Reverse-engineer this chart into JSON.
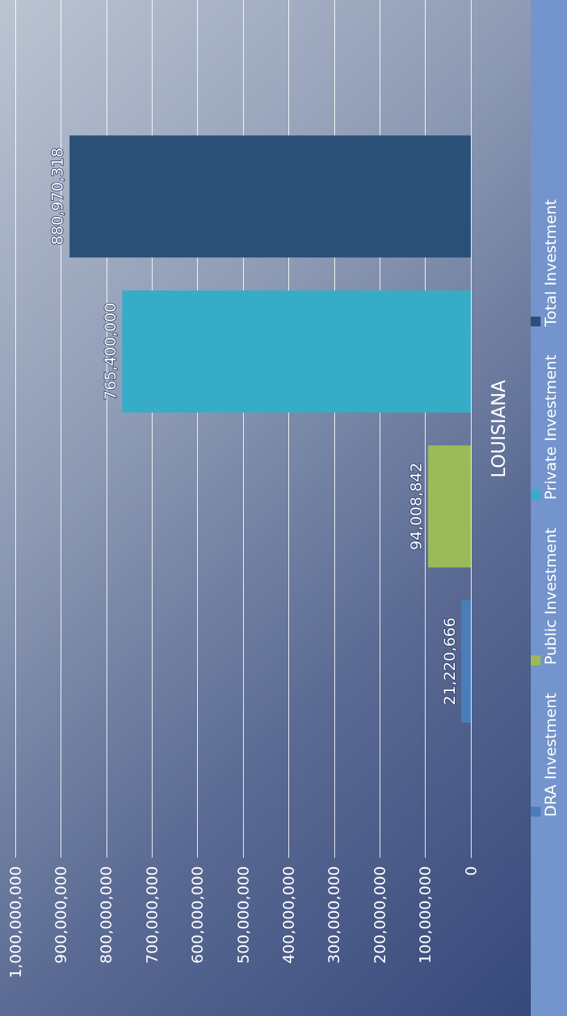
{
  "chart_data": {
    "type": "bar",
    "orientation": "horizontal",
    "categories": [
      "LOUISIANA"
    ],
    "series": [
      {
        "name": "DRA Investment",
        "color": "#4a7ebb",
        "values": [
          21220666
        ],
        "value_labels": [
          "21,220,666"
        ]
      },
      {
        "name": "Public Investment",
        "color": "#9bbb59",
        "values": [
          94008842
        ],
        "value_labels": [
          "94,008,842"
        ]
      },
      {
        "name": "Private Investment",
        "color": "#36acc7",
        "values": [
          765400000
        ],
        "value_labels": [
          "765,400,000"
        ]
      },
      {
        "name": "Total Investment",
        "color": "#2a5078",
        "values": [
          880970318
        ],
        "value_labels": [
          "880,970,318"
        ]
      }
    ],
    "xlim": [
      1000000000,
      0
    ],
    "xticks": [
      {
        "value": 0,
        "label": "0"
      },
      {
        "value": 100000000,
        "label": "100,000,000"
      },
      {
        "value": 200000000,
        "label": "200,000,000"
      },
      {
        "value": 300000000,
        "label": "300,000,000"
      },
      {
        "value": 400000000,
        "label": "400,000,000"
      },
      {
        "value": 500000000,
        "label": "500,000,000"
      },
      {
        "value": 600000000,
        "label": "600,000,000"
      },
      {
        "value": 700000000,
        "label": "700,000,000"
      },
      {
        "value": 800000000,
        "label": "800,000,000"
      },
      {
        "value": 900000000,
        "label": "900,000,000"
      },
      {
        "value": 1000000000,
        "label": "1,000,000,000"
      }
    ],
    "grid": "x",
    "legend": "right"
  }
}
